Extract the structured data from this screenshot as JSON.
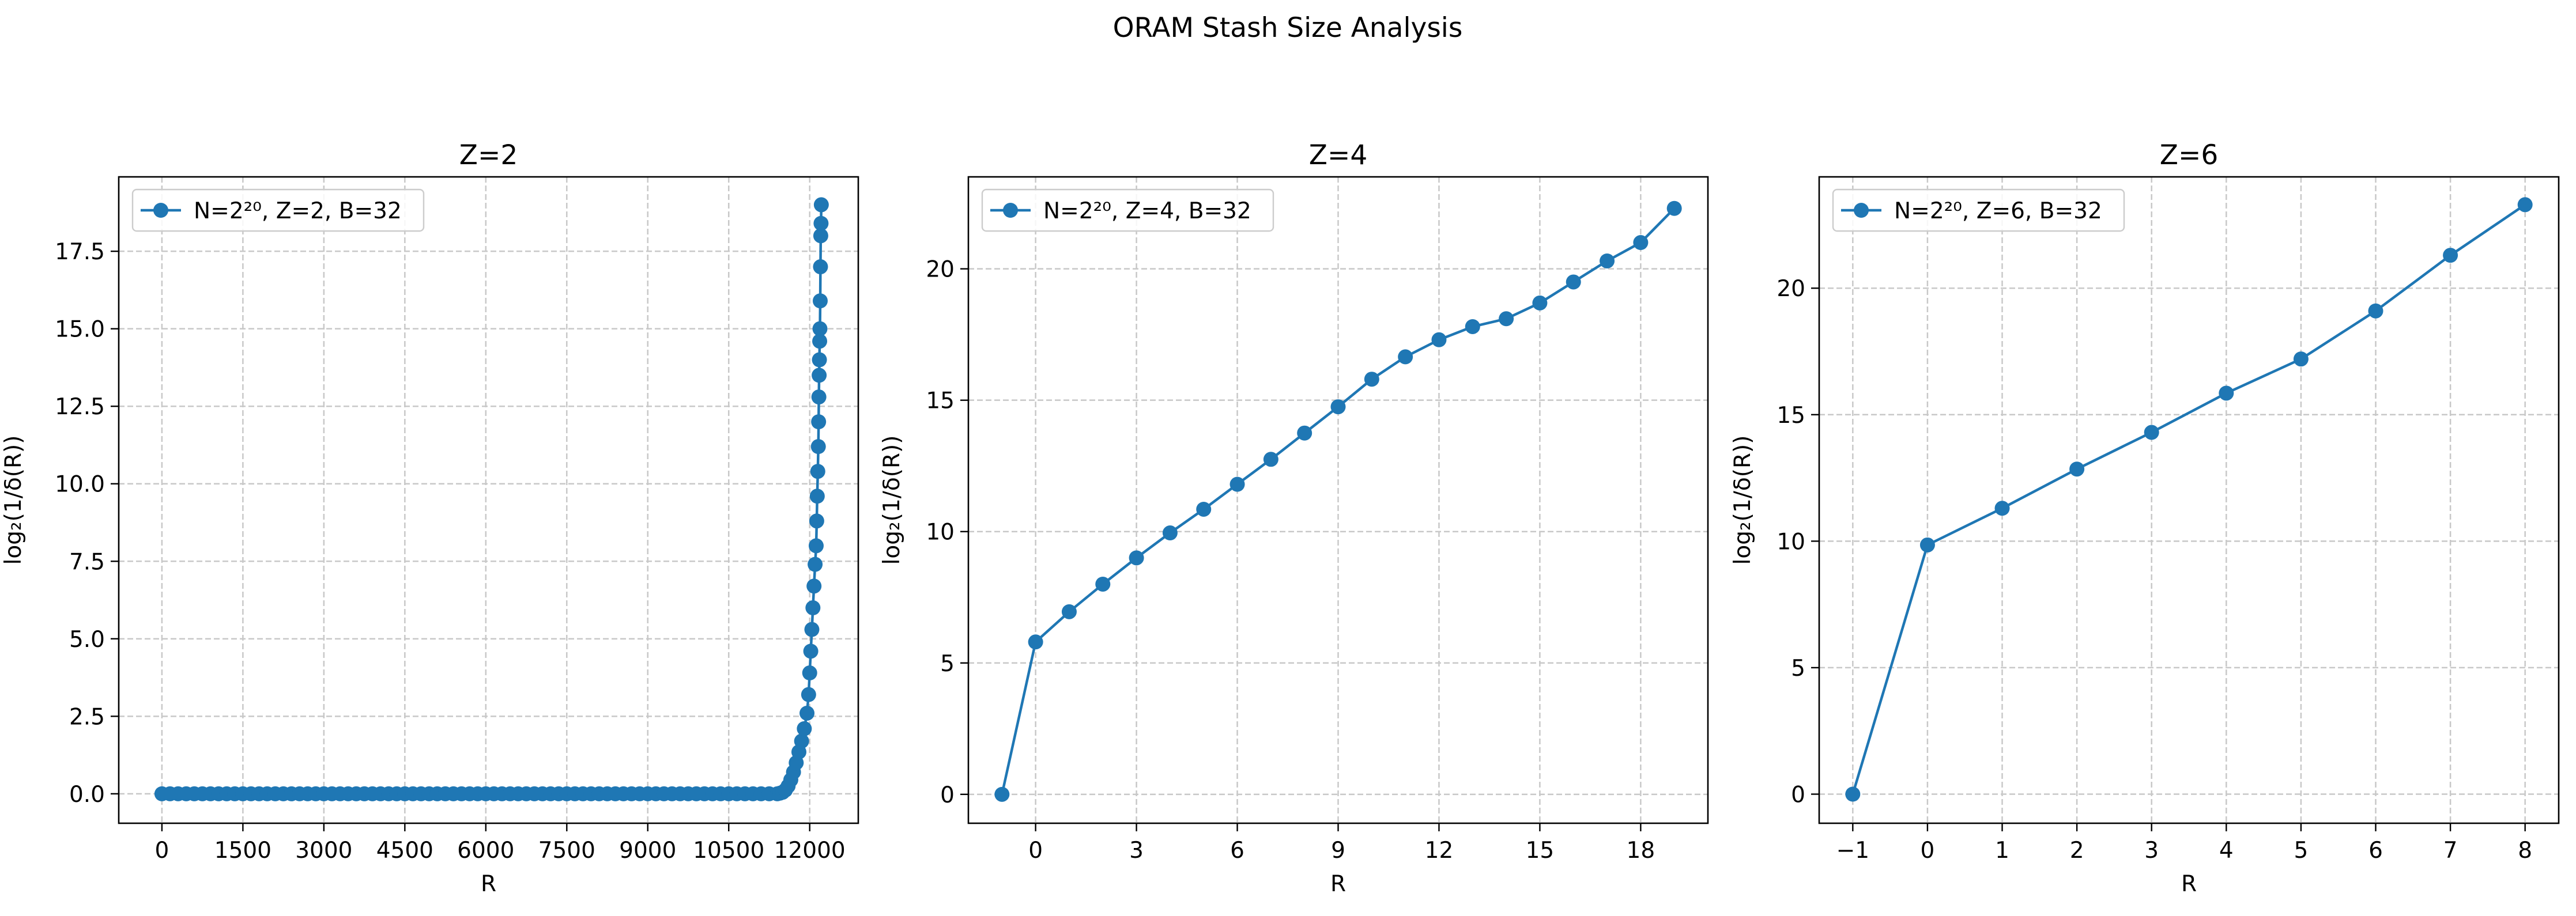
{
  "figure": {
    "suptitle": "ORAM Stash Size Analysis"
  },
  "colors": {
    "series": "#1f77b4",
    "grid": "#c8c8c8",
    "axes": "#000000",
    "legend_border": "#cccccc"
  },
  "chart_data": [
    {
      "type": "line",
      "title": "Z=2",
      "xlabel": "R",
      "ylabel": "log₂(1/δ(R))",
      "xlim": [
        -800,
        12900
      ],
      "ylim": [
        -0.95,
        19.9
      ],
      "xticks": [
        0,
        1500,
        3000,
        4500,
        6000,
        7500,
        9000,
        10500,
        12000
      ],
      "yticks": [
        0.0,
        2.5,
        5.0,
        7.5,
        10.0,
        12.5,
        15.0,
        17.5
      ],
      "ytick_labels": [
        "0.0",
        "2.5",
        "5.0",
        "7.5",
        "10.0",
        "12.5",
        "15.0",
        "17.5"
      ],
      "grid": true,
      "marker": "circle",
      "legend_position": "top-left",
      "series": [
        {
          "name": "N=2²⁰, Z=2, B=32",
          "points": [
            [
              0,
              0
            ],
            [
              150,
              0
            ],
            [
              300,
              0
            ],
            [
              450,
              0
            ],
            [
              600,
              0
            ],
            [
              750,
              0
            ],
            [
              900,
              0
            ],
            [
              1050,
              0
            ],
            [
              1200,
              0
            ],
            [
              1350,
              0
            ],
            [
              1500,
              0
            ],
            [
              1650,
              0
            ],
            [
              1800,
              0
            ],
            [
              1950,
              0
            ],
            [
              2100,
              0
            ],
            [
              2250,
              0
            ],
            [
              2400,
              0
            ],
            [
              2550,
              0
            ],
            [
              2700,
              0
            ],
            [
              2850,
              0
            ],
            [
              3000,
              0
            ],
            [
              3150,
              0
            ],
            [
              3300,
              0
            ],
            [
              3450,
              0
            ],
            [
              3600,
              0
            ],
            [
              3750,
              0
            ],
            [
              3900,
              0
            ],
            [
              4050,
              0
            ],
            [
              4200,
              0
            ],
            [
              4350,
              0
            ],
            [
              4500,
              0
            ],
            [
              4650,
              0
            ],
            [
              4800,
              0
            ],
            [
              4950,
              0
            ],
            [
              5100,
              0
            ],
            [
              5250,
              0
            ],
            [
              5400,
              0
            ],
            [
              5550,
              0
            ],
            [
              5700,
              0
            ],
            [
              5850,
              0
            ],
            [
              6000,
              0
            ],
            [
              6150,
              0
            ],
            [
              6300,
              0
            ],
            [
              6450,
              0
            ],
            [
              6600,
              0
            ],
            [
              6750,
              0
            ],
            [
              6900,
              0
            ],
            [
              7050,
              0
            ],
            [
              7200,
              0
            ],
            [
              7350,
              0
            ],
            [
              7500,
              0
            ],
            [
              7650,
              0
            ],
            [
              7800,
              0
            ],
            [
              7950,
              0
            ],
            [
              8100,
              0
            ],
            [
              8250,
              0
            ],
            [
              8400,
              0
            ],
            [
              8550,
              0
            ],
            [
              8700,
              0
            ],
            [
              8850,
              0
            ],
            [
              9000,
              0
            ],
            [
              9150,
              0
            ],
            [
              9300,
              0
            ],
            [
              9450,
              0
            ],
            [
              9600,
              0
            ],
            [
              9750,
              0
            ],
            [
              9900,
              0
            ],
            [
              10050,
              0
            ],
            [
              10200,
              0
            ],
            [
              10350,
              0
            ],
            [
              10500,
              0
            ],
            [
              10650,
              0
            ],
            [
              10800,
              0
            ],
            [
              10950,
              0
            ],
            [
              11100,
              0
            ],
            [
              11250,
              0
            ],
            [
              11400,
              0
            ],
            [
              11450,
              0.02
            ],
            [
              11500,
              0.05
            ],
            [
              11550,
              0.12
            ],
            [
              11600,
              0.25
            ],
            [
              11650,
              0.45
            ],
            [
              11700,
              0.7
            ],
            [
              11750,
              1.0
            ],
            [
              11800,
              1.35
            ],
            [
              11850,
              1.7
            ],
            [
              11900,
              2.1
            ],
            [
              11950,
              2.6
            ],
            [
              11980,
              3.2
            ],
            [
              12000,
              3.9
            ],
            [
              12020,
              4.6
            ],
            [
              12040,
              5.3
            ],
            [
              12060,
              6.0
            ],
            [
              12080,
              6.7
            ],
            [
              12100,
              7.4
            ],
            [
              12120,
              8.0
            ],
            [
              12130,
              8.8
            ],
            [
              12140,
              9.6
            ],
            [
              12150,
              10.4
            ],
            [
              12160,
              11.2
            ],
            [
              12165,
              12.0
            ],
            [
              12170,
              12.8
            ],
            [
              12175,
              13.5
            ],
            [
              12180,
              14.0
            ],
            [
              12185,
              14.6
            ],
            [
              12190,
              15.0
            ],
            [
              12195,
              15.9
            ],
            [
              12200,
              17.0
            ],
            [
              12205,
              18.0
            ],
            [
              12210,
              18.4
            ],
            [
              12215,
              19.0
            ]
          ]
        }
      ]
    },
    {
      "type": "line",
      "title": "Z=4",
      "xlabel": "R",
      "ylabel": "log₂(1/δ(R))",
      "xlim": [
        -2,
        20
      ],
      "ylim": [
        -1.1,
        23.5
      ],
      "xticks": [
        0,
        3,
        6,
        9,
        12,
        15,
        18
      ],
      "yticks": [
        0,
        5,
        10,
        15,
        20
      ],
      "ytick_labels": [
        "0",
        "5",
        "10",
        "15",
        "20"
      ],
      "grid": true,
      "marker": "circle",
      "legend_position": "top-left",
      "series": [
        {
          "name": "N=2²⁰, Z=4, B=32",
          "points": [
            [
              -1,
              0.0
            ],
            [
              0,
              5.8
            ],
            [
              1,
              6.95
            ],
            [
              2,
              8.0
            ],
            [
              3,
              9.0
            ],
            [
              4,
              9.95
            ],
            [
              5,
              10.85
            ],
            [
              6,
              11.8
            ],
            [
              7,
              12.75
            ],
            [
              8,
              13.75
            ],
            [
              9,
              14.75
            ],
            [
              10,
              15.8
            ],
            [
              11,
              16.65
            ],
            [
              12,
              17.3
            ],
            [
              13,
              17.8
            ],
            [
              14,
              18.1
            ],
            [
              15,
              18.7
            ],
            [
              16,
              19.5
            ],
            [
              17,
              20.3
            ],
            [
              18,
              21.0
            ],
            [
              19,
              22.3
            ]
          ]
        }
      ]
    },
    {
      "type": "line",
      "title": "Z=6",
      "xlabel": "R",
      "ylabel": "log₂(1/δ(R))",
      "xlim": [
        -1.45,
        8.45
      ],
      "ylim": [
        -1.15,
        24.4
      ],
      "xticks": [
        -1,
        0,
        1,
        2,
        3,
        4,
        5,
        6,
        7,
        8
      ],
      "xtick_labels": [
        "−1",
        "0",
        "1",
        "2",
        "3",
        "4",
        "5",
        "6",
        "7",
        "8"
      ],
      "yticks": [
        0,
        5,
        10,
        15,
        20
      ],
      "ytick_labels": [
        "0",
        "5",
        "10",
        "15",
        "20"
      ],
      "grid": true,
      "marker": "circle",
      "legend_position": "top-left",
      "series": [
        {
          "name": "N=2²⁰, Z=6, B=32",
          "points": [
            [
              -1,
              0.0
            ],
            [
              0,
              9.85
            ],
            [
              1,
              11.3
            ],
            [
              2,
              12.85
            ],
            [
              3,
              14.3
            ],
            [
              4,
              15.85
            ],
            [
              5,
              17.2
            ],
            [
              6,
              19.1
            ],
            [
              7,
              21.3
            ],
            [
              8,
              23.3
            ]
          ]
        }
      ]
    }
  ]
}
